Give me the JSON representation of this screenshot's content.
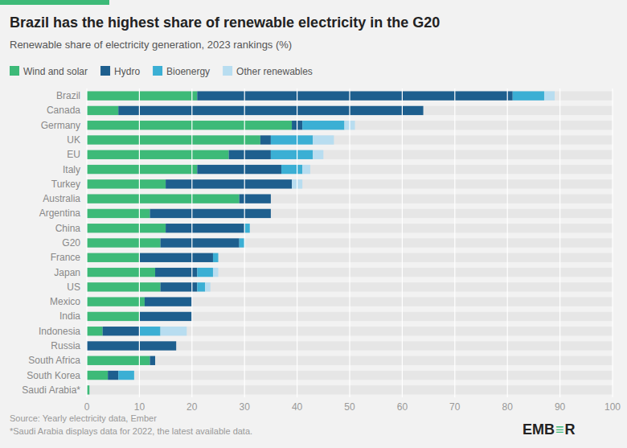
{
  "chart_data": {
    "type": "bar",
    "orientation": "horizontal",
    "stacked": true,
    "title": "Brazil has the highest share of renewable electricity in the G20",
    "subtitle": "Renewable share of electricity generation, 2023 rankings (%)",
    "categories": [
      "Brazil",
      "Canada",
      "Germany",
      "UK",
      "EU",
      "Italy",
      "Turkey",
      "Australia",
      "Argentina",
      "China",
      "G20",
      "France",
      "Japan",
      "US",
      "Mexico",
      "India",
      "Indonesia",
      "Russia",
      "South Africa",
      "South Korea",
      "Saudi Arabia*"
    ],
    "series": [
      {
        "name": "Wind and solar",
        "color": "#3dba78",
        "values": [
          21.0,
          6.0,
          39.0,
          33.0,
          27.0,
          21.0,
          15.0,
          29.0,
          12.0,
          15.0,
          14.0,
          10.0,
          13.0,
          14.0,
          11.0,
          10.0,
          3.0,
          0.0,
          12.0,
          4.0,
          0.5
        ]
      },
      {
        "name": "Hydro",
        "color": "#1e5f8e",
        "values": [
          60.0,
          58.0,
          2.0,
          2.0,
          8.0,
          16.0,
          24.0,
          6.0,
          23.0,
          15.0,
          15.0,
          14.0,
          8.0,
          7.0,
          9.0,
          10.0,
          7.0,
          17.0,
          1.0,
          2.0,
          0.0
        ]
      },
      {
        "name": "Bioenergy",
        "color": "#3bafd4",
        "values": [
          6.0,
          0.0,
          8.0,
          8.0,
          8.0,
          4.0,
          0.0,
          0.0,
          0.0,
          1.0,
          1.0,
          1.0,
          3.0,
          1.5,
          0.0,
          0.0,
          4.0,
          0.0,
          0.0,
          3.0,
          0.0
        ]
      },
      {
        "name": "Other renewables",
        "color": "#b8ddf0",
        "values": [
          2.0,
          0.0,
          2.0,
          4.0,
          2.0,
          1.5,
          2.0,
          0.0,
          0.0,
          0.0,
          0.0,
          0.0,
          1.0,
          1.0,
          0.0,
          0.0,
          5.0,
          0.0,
          0.0,
          0.0,
          0.0
        ]
      }
    ],
    "xlim": [
      0,
      100
    ],
    "xticks": [
      0,
      10,
      20,
      30,
      40,
      50,
      60,
      70,
      80,
      90,
      100
    ],
    "grid": true,
    "legend": "upper left",
    "annotations": [
      "Source: Yearly electricity data, Ember",
      "*Saudi Arabia displays data for 2022, the latest available data.",
      "EMB",
      "≡",
      "R"
    ]
  }
}
